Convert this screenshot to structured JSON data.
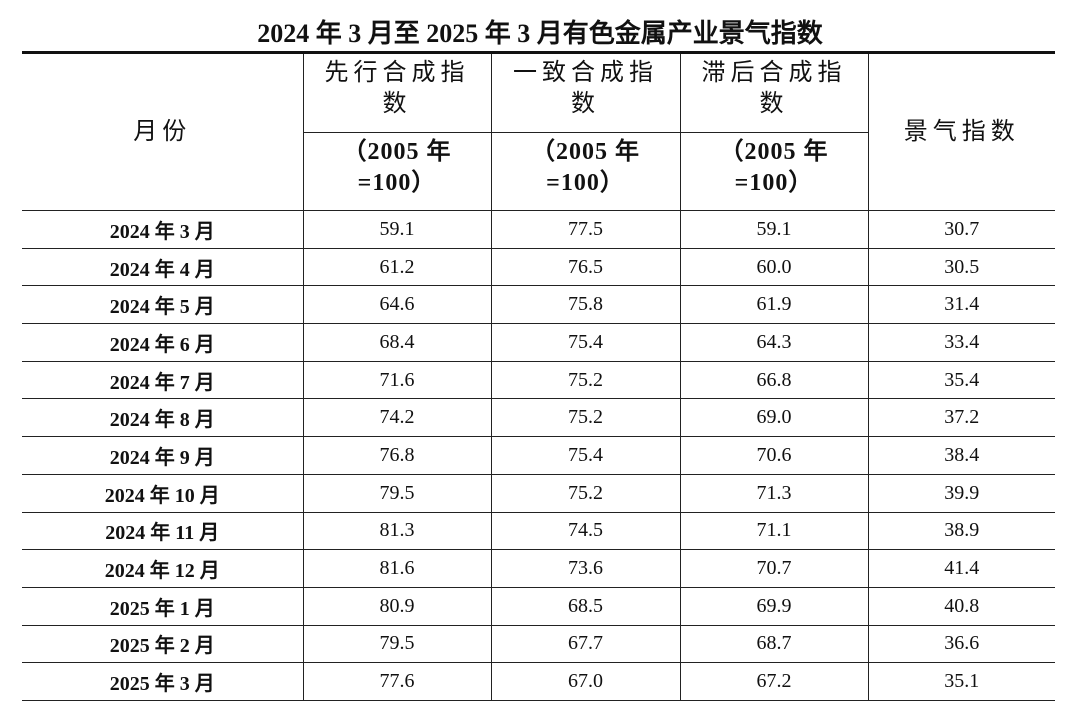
{
  "title": "2024 年 3 月至 2025 年 3 月有色金属产业景气指数",
  "header": {
    "month": "月份",
    "groups": [
      {
        "name": "先行合成指数",
        "base": "（2005 年=100）"
      },
      {
        "name": "一致合成指数",
        "base": "（2005 年=100）"
      },
      {
        "name": "滞后合成指数",
        "base": "（2005 年=100）"
      }
    ],
    "index": "景气指数"
  },
  "table": {
    "rows": [
      [
        "2024 年 3 月",
        "59.1",
        "77.5",
        "59.1",
        "30.7"
      ],
      [
        "2024 年 4 月",
        "61.2",
        "76.5",
        "60.0",
        "30.5"
      ],
      [
        "2024 年 5 月",
        "64.6",
        "75.8",
        "61.9",
        "31.4"
      ],
      [
        "2024 年 6 月",
        "68.4",
        "75.4",
        "64.3",
        "33.4"
      ],
      [
        "2024 年 7 月",
        "71.6",
        "75.2",
        "66.8",
        "35.4"
      ],
      [
        "2024 年 8 月",
        "74.2",
        "75.2",
        "69.0",
        "37.2"
      ],
      [
        "2024 年 9 月",
        "76.8",
        "75.4",
        "70.6",
        "38.4"
      ],
      [
        "2024 年 10 月",
        "79.5",
        "75.2",
        "71.3",
        "39.9"
      ],
      [
        "2024 年 11 月",
        "81.3",
        "74.5",
        "71.1",
        "38.9"
      ],
      [
        "2024 年 12 月",
        "81.6",
        "73.6",
        "70.7",
        "41.4"
      ],
      [
        "2025 年 1 月",
        "80.9",
        "68.5",
        "69.9",
        "40.8"
      ],
      [
        "2025 年 2 月",
        "79.5",
        "67.7",
        "68.7",
        "36.6"
      ],
      [
        "2025 年 3 月",
        "77.6",
        "67.0",
        "67.2",
        "35.1"
      ]
    ]
  }
}
